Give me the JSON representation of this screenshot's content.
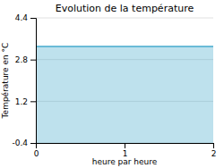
{
  "chart_data": {
    "type": "area",
    "title": "Evolution de la température",
    "x_label": "heure par heure",
    "y_label": "Température en °C",
    "x": [
      0,
      2
    ],
    "values": [
      3.3,
      3.3
    ],
    "color": "#44aacc",
    "xlim": [
      0,
      2
    ],
    "ylim": [
      -0.4,
      4.4
    ],
    "xticks": [
      0,
      1,
      2
    ],
    "yticks": [
      -0.4,
      1.2,
      2.8,
      4.4
    ],
    "grid": true
  }
}
